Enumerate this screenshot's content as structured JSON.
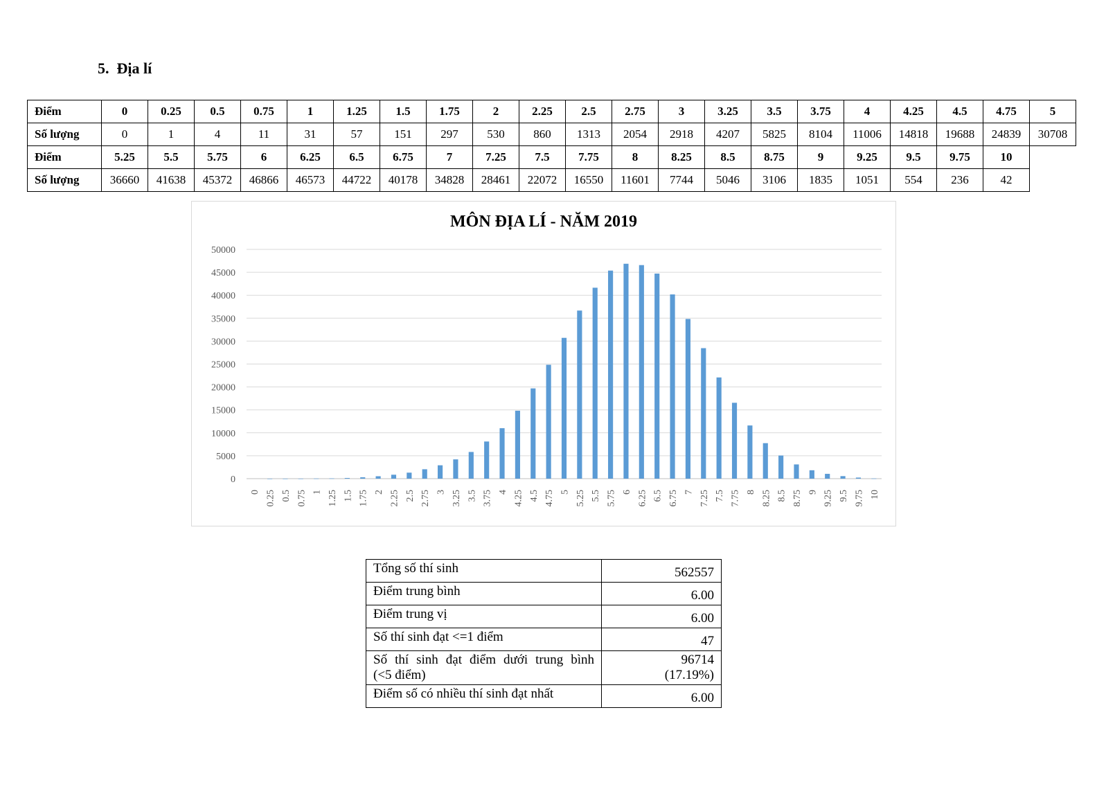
{
  "section": {
    "number": "5.",
    "title": "Địa lí"
  },
  "dist_table": {
    "score_label": "Điểm",
    "count_label": "Số lượng",
    "row1_scores": [
      "0",
      "0.25",
      "0.5",
      "0.75",
      "1",
      "1.25",
      "1.5",
      "1.75",
      "2",
      "2.25",
      "2.5",
      "2.75",
      "3",
      "3.25",
      "3.5",
      "3.75",
      "4",
      "4.25",
      "4.5",
      "4.75",
      "5"
    ],
    "row1_counts": [
      "0",
      "1",
      "4",
      "11",
      "31",
      "57",
      "151",
      "297",
      "530",
      "860",
      "1313",
      "2054",
      "2918",
      "4207",
      "5825",
      "8104",
      "11006",
      "14818",
      "19688",
      "24839",
      "30708"
    ],
    "row2_scores": [
      "5.25",
      "5.5",
      "5.75",
      "6",
      "6.25",
      "6.5",
      "6.75",
      "7",
      "7.25",
      "7.5",
      "7.75",
      "8",
      "8.25",
      "8.5",
      "8.75",
      "9",
      "9.25",
      "9.5",
      "9.75",
      "10"
    ],
    "row2_counts": [
      "36660",
      "41638",
      "45372",
      "46866",
      "46573",
      "44722",
      "40178",
      "34828",
      "28461",
      "22072",
      "16550",
      "11601",
      "7744",
      "5046",
      "3106",
      "1835",
      "1051",
      "554",
      "236",
      "42"
    ]
  },
  "chart_data": {
    "type": "bar",
    "title": "MÔN ĐỊA LÍ - NĂM 2019",
    "xlabel": "",
    "ylabel": "",
    "ylim": [
      0,
      50000
    ],
    "yticks": [
      0,
      5000,
      10000,
      15000,
      20000,
      25000,
      30000,
      35000,
      40000,
      45000,
      50000
    ],
    "grid": true,
    "bar_color": "#5b9bd5",
    "categories": [
      "0",
      "0.25",
      "0.5",
      "0.75",
      "1",
      "1.25",
      "1.5",
      "1.75",
      "2",
      "2.25",
      "2.5",
      "2.75",
      "3",
      "3.25",
      "3.5",
      "3.75",
      "4",
      "4.25",
      "4.5",
      "4.75",
      "5",
      "5.25",
      "5.5",
      "5.75",
      "6",
      "6.25",
      "6.5",
      "6.75",
      "7",
      "7.25",
      "7.5",
      "7.75",
      "8",
      "8.25",
      "8.5",
      "8.75",
      "9",
      "9.25",
      "9.5",
      "9.75",
      "10"
    ],
    "values": [
      0,
      1,
      4,
      11,
      31,
      57,
      151,
      297,
      530,
      860,
      1313,
      2054,
      2918,
      4207,
      5825,
      8104,
      11006,
      14818,
      19688,
      24839,
      30708,
      36660,
      41638,
      45372,
      46866,
      46573,
      44722,
      40178,
      34828,
      28461,
      22072,
      16550,
      11601,
      7744,
      5046,
      3106,
      1835,
      1051,
      554,
      236,
      42
    ]
  },
  "stats": {
    "total_label": "Tổng số thí sinh",
    "total_value": "562557",
    "mean_label": "Điểm trung bình",
    "mean_value": "6.00",
    "median_label": "Điểm trung vị",
    "median_value": "6.00",
    "le1_label": "Số thí sinh đạt <=1 điểm",
    "le1_value": "47",
    "below_label_line1": "Số thí sinh đạt điểm dưới trung bình",
    "below_label_line2": "(<5 điểm)",
    "below_value_line1": "96714",
    "below_value_line2": "(17.19%)",
    "mode_label": "Điểm số có nhiều thí sinh đạt nhất",
    "mode_value": "6.00"
  }
}
